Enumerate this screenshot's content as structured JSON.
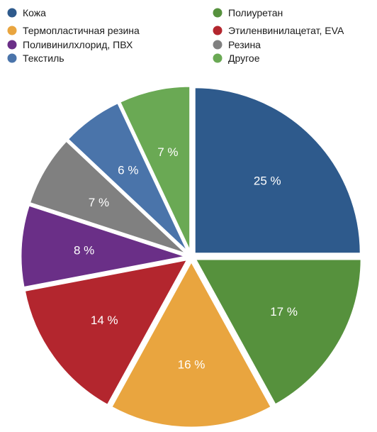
{
  "chart_data": {
    "type": "pie",
    "title": "",
    "unit": "%",
    "legend_position": "top",
    "categories": [
      "Кожа",
      "Полиуретан",
      "Термопластичная резина",
      "Этиленвинилацетат, EVA",
      "Поливинилхлорид, ПВХ",
      "Резина",
      "Текстиль",
      "Другое"
    ],
    "values": [
      25,
      17,
      16,
      14,
      8,
      7,
      6,
      7
    ],
    "labels": [
      "25 %",
      "17 %",
      "16 %",
      "14 %",
      "8 %",
      "7 %",
      "6 %",
      "7 %"
    ],
    "colors": [
      "#2e5a8c",
      "#56913d",
      "#e9a53f",
      "#b3262e",
      "#6a2f87",
      "#808080",
      "#4a74aa",
      "#6aa954"
    ],
    "legend": [
      {
        "label": "Кожа",
        "color": "#2e5a8c"
      },
      {
        "label": "Полиуретан",
        "color": "#56913d"
      },
      {
        "label": "Термопластичная резина",
        "color": "#e9a53f"
      },
      {
        "label": "Этиленвинилацетат, EVA",
        "color": "#b3262e"
      },
      {
        "label": "Поливинилхлорид, ПВХ",
        "color": "#6a2f87"
      },
      {
        "label": "Резина",
        "color": "#808080"
      },
      {
        "label": "Текстиль",
        "color": "#4a74aa"
      },
      {
        "label": "Другое",
        "color": "#6aa954"
      }
    ]
  }
}
